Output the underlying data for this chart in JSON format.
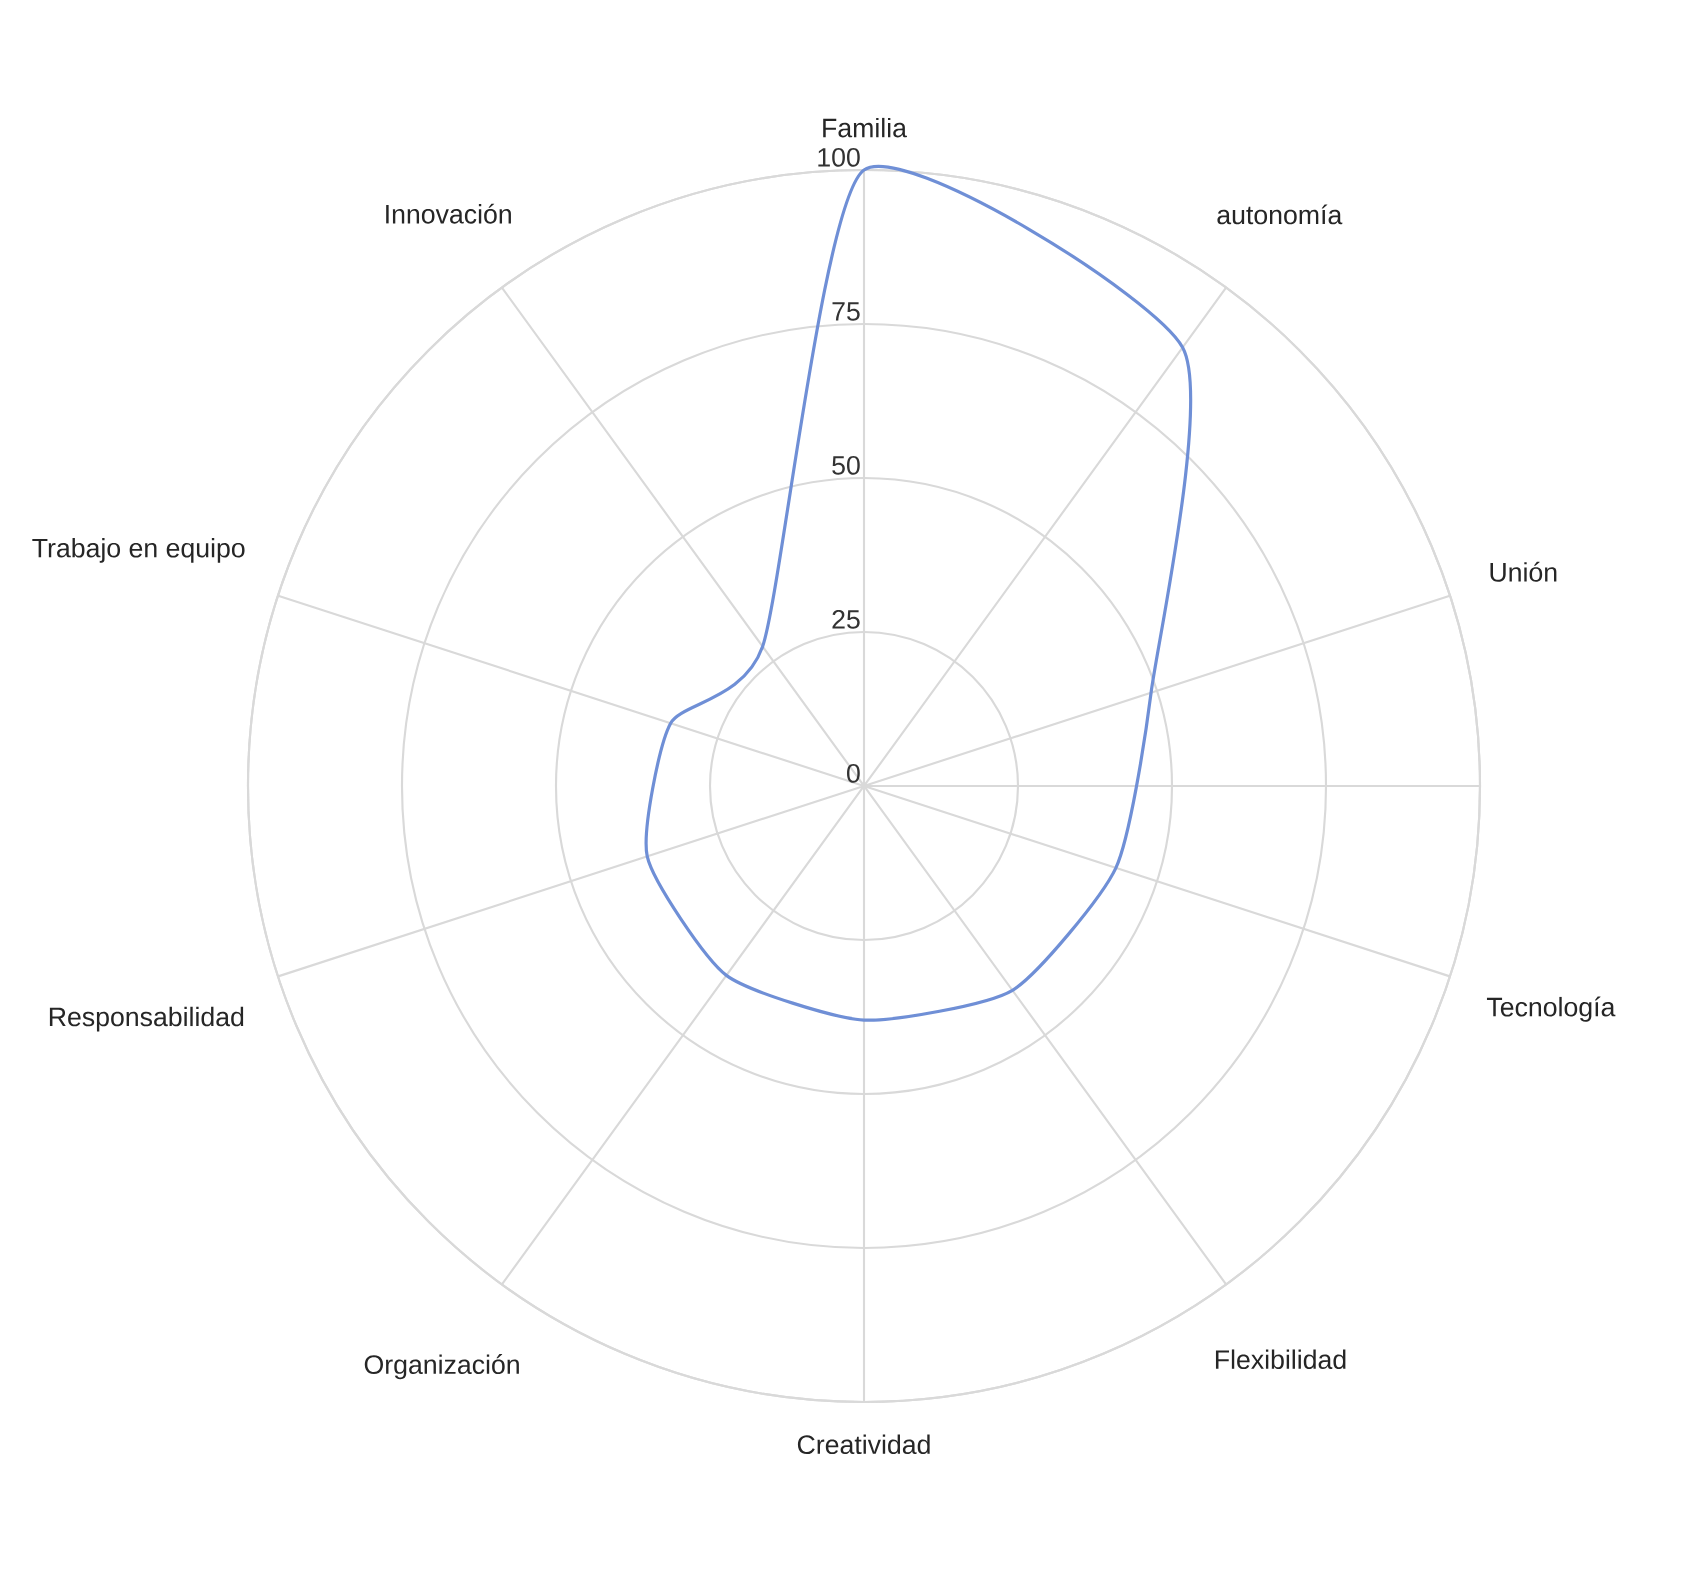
{
  "chart_data": {
    "type": "radar",
    "categories": [
      "Familia",
      "autonomía",
      "Unión",
      "Tecnología",
      "Flexibilidad",
      "Creatividad",
      "Organización",
      "Responsabilidad",
      "Trabajo en equipo",
      "Innovación"
    ],
    "series": [
      {
        "color": "#6f8fd6",
        "values": [
          100,
          88,
          49,
          43,
          41,
          38,
          38,
          37,
          33,
          28
        ]
      }
    ],
    "ylim": [
      0,
      100
    ],
    "yticks": [
      0,
      25,
      50,
      75,
      100
    ],
    "grid": true
  }
}
